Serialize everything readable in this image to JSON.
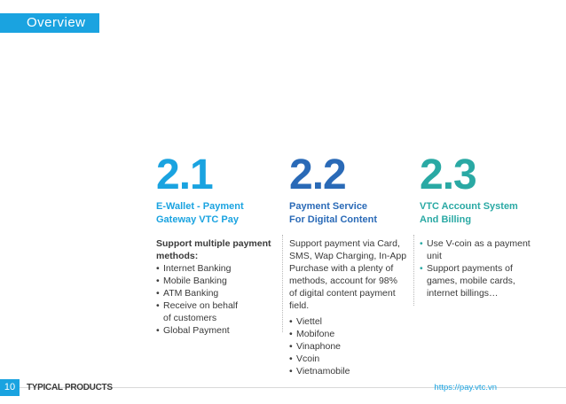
{
  "header": {
    "title": "Overview",
    "accent_color": "#1aa3e0"
  },
  "columns": [
    {
      "number": "2.1",
      "heading": "E-Wallet - Payment\nGateway VTC Pay",
      "intro": "Support multiple payment\nmethods:",
      "bullets": [
        "Internet Banking",
        "Mobile Banking",
        "ATM Banking",
        "Receive on behalf\nof customers",
        "Global Payment"
      ],
      "color": "#1aa3e0"
    },
    {
      "number": "2.2",
      "heading": "Payment Service\nFor Digital Content",
      "intro": "Support payment via Card,\nSMS, Wap Charging, In-App\nPurchase with a plenty of\nmethods, account for 98%\nof digital content payment\nfield.",
      "bullets": [
        "Viettel",
        "Mobifone",
        "Vinaphone",
        "Vcoin",
        "Vietnamobile"
      ],
      "color": "#2a6ab7"
    },
    {
      "number": "2.3",
      "heading": "VTC Account System\nAnd Billing",
      "bullets": [
        "Use V-coin as a payment\nunit",
        "Support payments of\ngames, mobile cards,\ninternet billings…"
      ],
      "color": "#2aa9a4"
    }
  ],
  "footer": {
    "page_number": "10",
    "section": "TYPICAL PRODUCTS",
    "url": "https://pay.vtc.vn"
  }
}
